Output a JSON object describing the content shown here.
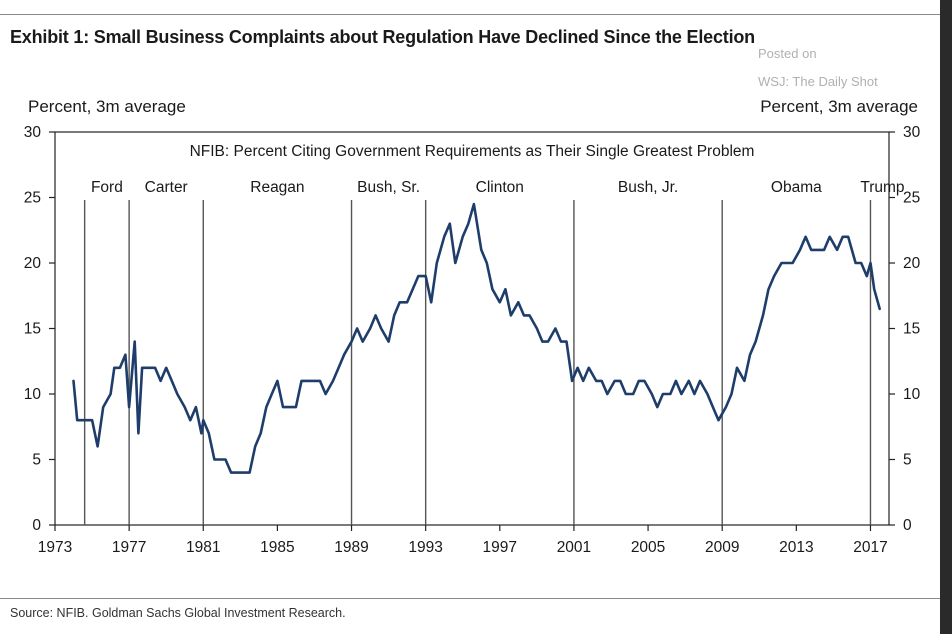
{
  "page": {
    "title": "Exhibit 1: Small Business Complaints about Regulation Have Declined Since the Election",
    "watermark_line1": "Posted on",
    "watermark_line2": "WSJ: The Daily Shot",
    "source": "Source: NFIB. Goldman Sachs Global Investment Research."
  },
  "chart_data": {
    "type": "line",
    "title": "NFIB: Percent Citing Government Requirements as Their Single Greatest Problem",
    "ylabel_left": "Percent, 3m average",
    "ylabel_right": "Percent, 3m average",
    "xlim": [
      1973,
      2018
    ],
    "ylim": [
      0,
      30
    ],
    "x_ticks": [
      1973,
      1977,
      1981,
      1985,
      1989,
      1993,
      1997,
      2001,
      2005,
      2009,
      2013,
      2017
    ],
    "y_ticks": [
      0,
      5,
      10,
      15,
      20,
      25,
      30
    ],
    "line_color": "#1f3d6b",
    "divider_color": "#555555",
    "presidents": [
      {
        "name": "Ford",
        "start": 1974.6
      },
      {
        "name": "Carter",
        "start": 1977.0
      },
      {
        "name": "Reagan",
        "start": 1981.0
      },
      {
        "name": "Bush, Sr.",
        "start": 1989.0
      },
      {
        "name": "Clinton",
        "start": 1993.0
      },
      {
        "name": "Bush, Jr.",
        "start": 2001.0
      },
      {
        "name": "Obama",
        "start": 2009.0
      },
      {
        "name": "Trump",
        "start": 2017.0
      }
    ],
    "series": [
      {
        "values": [
          [
            1974.0,
            11
          ],
          [
            1974.2,
            8
          ],
          [
            1974.6,
            8
          ],
          [
            1975.0,
            8
          ],
          [
            1975.3,
            6
          ],
          [
            1975.6,
            9
          ],
          [
            1976.0,
            10
          ],
          [
            1976.2,
            12
          ],
          [
            1976.5,
            12
          ],
          [
            1976.8,
            13
          ],
          [
            1977.0,
            9
          ],
          [
            1977.3,
            14
          ],
          [
            1977.5,
            7
          ],
          [
            1977.7,
            12
          ],
          [
            1978.0,
            12
          ],
          [
            1978.4,
            12
          ],
          [
            1978.7,
            11
          ],
          [
            1979.0,
            12
          ],
          [
            1979.3,
            11
          ],
          [
            1979.6,
            10
          ],
          [
            1980.0,
            9
          ],
          [
            1980.3,
            8
          ],
          [
            1980.6,
            9
          ],
          [
            1980.9,
            7
          ],
          [
            1981.0,
            8
          ],
          [
            1981.3,
            7
          ],
          [
            1981.6,
            5
          ],
          [
            1981.9,
            5
          ],
          [
            1982.2,
            5
          ],
          [
            1982.5,
            4
          ],
          [
            1982.8,
            4
          ],
          [
            1983.2,
            4
          ],
          [
            1983.5,
            4
          ],
          [
            1983.8,
            6
          ],
          [
            1984.1,
            7
          ],
          [
            1984.4,
            9
          ],
          [
            1984.7,
            10
          ],
          [
            1985.0,
            11
          ],
          [
            1985.3,
            9
          ],
          [
            1985.6,
            9
          ],
          [
            1986.0,
            9
          ],
          [
            1986.3,
            11
          ],
          [
            1986.6,
            11
          ],
          [
            1987.0,
            11
          ],
          [
            1987.3,
            11
          ],
          [
            1987.6,
            10
          ],
          [
            1988.0,
            11
          ],
          [
            1988.3,
            12
          ],
          [
            1988.6,
            13
          ],
          [
            1989.0,
            14
          ],
          [
            1989.3,
            15
          ],
          [
            1989.6,
            14
          ],
          [
            1990.0,
            15
          ],
          [
            1990.3,
            16
          ],
          [
            1990.6,
            15
          ],
          [
            1991.0,
            14
          ],
          [
            1991.3,
            16
          ],
          [
            1991.6,
            17
          ],
          [
            1992.0,
            17
          ],
          [
            1992.3,
            18
          ],
          [
            1992.6,
            19
          ],
          [
            1993.0,
            19
          ],
          [
            1993.3,
            17
          ],
          [
            1993.6,
            20
          ],
          [
            1994.0,
            22
          ],
          [
            1994.3,
            23
          ],
          [
            1994.6,
            20
          ],
          [
            1995.0,
            22
          ],
          [
            1995.3,
            23
          ],
          [
            1995.6,
            24.5
          ],
          [
            1996.0,
            21
          ],
          [
            1996.3,
            20
          ],
          [
            1996.6,
            18
          ],
          [
            1997.0,
            17
          ],
          [
            1997.3,
            18
          ],
          [
            1997.6,
            16
          ],
          [
            1998.0,
            17
          ],
          [
            1998.3,
            16
          ],
          [
            1998.6,
            16
          ],
          [
            1999.0,
            15
          ],
          [
            1999.3,
            14
          ],
          [
            1999.6,
            14
          ],
          [
            2000.0,
            15
          ],
          [
            2000.3,
            14
          ],
          [
            2000.6,
            14
          ],
          [
            2000.9,
            11
          ],
          [
            2001.2,
            12
          ],
          [
            2001.5,
            11
          ],
          [
            2001.8,
            12
          ],
          [
            2002.2,
            11
          ],
          [
            2002.5,
            11
          ],
          [
            2002.8,
            10
          ],
          [
            2003.2,
            11
          ],
          [
            2003.5,
            11
          ],
          [
            2003.8,
            10
          ],
          [
            2004.2,
            10
          ],
          [
            2004.5,
            11
          ],
          [
            2004.8,
            11
          ],
          [
            2005.2,
            10
          ],
          [
            2005.5,
            9
          ],
          [
            2005.8,
            10
          ],
          [
            2006.2,
            10
          ],
          [
            2006.5,
            11
          ],
          [
            2006.8,
            10
          ],
          [
            2007.2,
            11
          ],
          [
            2007.5,
            10
          ],
          [
            2007.8,
            11
          ],
          [
            2008.2,
            10
          ],
          [
            2008.5,
            9
          ],
          [
            2008.8,
            8
          ],
          [
            2009.2,
            9
          ],
          [
            2009.5,
            10
          ],
          [
            2009.8,
            12
          ],
          [
            2010.2,
            11
          ],
          [
            2010.5,
            13
          ],
          [
            2010.8,
            14
          ],
          [
            2011.2,
            16
          ],
          [
            2011.5,
            18
          ],
          [
            2011.8,
            19
          ],
          [
            2012.2,
            20
          ],
          [
            2012.5,
            20
          ],
          [
            2012.8,
            20
          ],
          [
            2013.2,
            21
          ],
          [
            2013.5,
            22
          ],
          [
            2013.8,
            21
          ],
          [
            2014.2,
            21
          ],
          [
            2014.5,
            21
          ],
          [
            2014.8,
            22
          ],
          [
            2015.2,
            21
          ],
          [
            2015.5,
            22
          ],
          [
            2015.8,
            22
          ],
          [
            2016.2,
            20
          ],
          [
            2016.5,
            20
          ],
          [
            2016.8,
            19
          ],
          [
            2017.0,
            20
          ],
          [
            2017.2,
            18
          ],
          [
            2017.5,
            16.5
          ]
        ]
      }
    ]
  }
}
